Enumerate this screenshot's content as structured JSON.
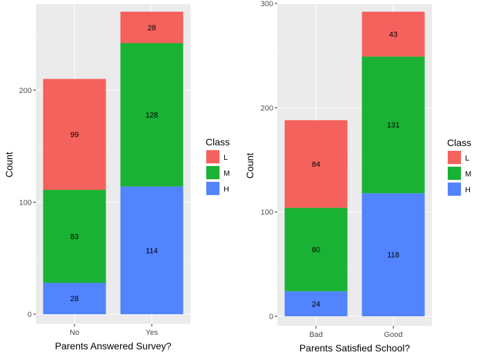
{
  "chart_data": [
    {
      "type": "bar",
      "stacked": true,
      "title": "",
      "xlabel": "Parents Answered Survey?",
      "ylabel": "Count",
      "categories": [
        "No",
        "Yes"
      ],
      "ylim": [
        0,
        270
      ],
      "yticks": [
        0,
        100,
        200
      ],
      "grid": true,
      "legend": {
        "title": "Class",
        "position": "right",
        "entries": [
          "L",
          "M",
          "H"
        ]
      },
      "series": [
        {
          "name": "H",
          "color": "#5284FF",
          "values": [
            28,
            114
          ]
        },
        {
          "name": "M",
          "color": "#1AB234",
          "values": [
            83,
            128
          ]
        },
        {
          "name": "L",
          "color": "#F5615C",
          "values": [
            99,
            28
          ]
        }
      ]
    },
    {
      "type": "bar",
      "stacked": true,
      "title": "",
      "xlabel": "Parents Satisfied School?",
      "ylabel": "Count",
      "categories": [
        "Bad",
        "Good"
      ],
      "ylim": [
        0,
        292
      ],
      "yticks": [
        0,
        100,
        200,
        300
      ],
      "grid": true,
      "legend": {
        "title": "Class",
        "position": "right",
        "entries": [
          "L",
          "M",
          "H"
        ]
      },
      "series": [
        {
          "name": "H",
          "color": "#5284FF",
          "values": [
            24,
            118
          ]
        },
        {
          "name": "M",
          "color": "#1AB234",
          "values": [
            80,
            131
          ]
        },
        {
          "name": "L",
          "color": "#F5615C",
          "values": [
            84,
            43
          ]
        }
      ]
    }
  ]
}
